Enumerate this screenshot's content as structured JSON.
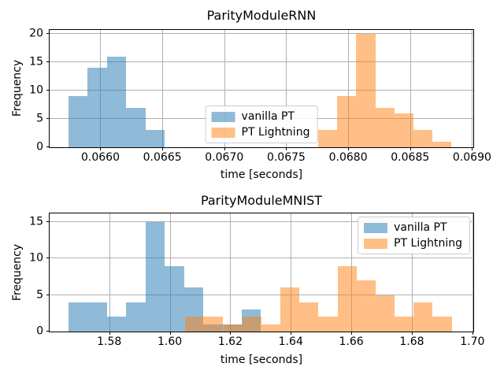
{
  "figure": {
    "background": "#ffffff",
    "grid_color": "#b0b0b0",
    "text_color": "#000000"
  },
  "chart_data": [
    {
      "type": "histogram",
      "title": "ParityModuleRNN",
      "xlabel": "time [seconds]",
      "ylabel": "Frequency",
      "xlim": [
        0.06559,
        0.06901
      ],
      "ylim": [
        0,
        20.7
      ],
      "grid": true,
      "xticks": [
        {
          "v": 0.066,
          "label": "0.0660"
        },
        {
          "v": 0.0665,
          "label": "0.0665"
        },
        {
          "v": 0.067,
          "label": "0.0670"
        },
        {
          "v": 0.0675,
          "label": "0.0675"
        },
        {
          "v": 0.068,
          "label": "0.0680"
        },
        {
          "v": 0.0685,
          "label": "0.0685"
        },
        {
          "v": 0.069,
          "label": "0.0690"
        }
      ],
      "yticks": [
        {
          "v": 0,
          "label": "0"
        },
        {
          "v": 5,
          "label": "5"
        },
        {
          "v": 10,
          "label": "10"
        },
        {
          "v": 15,
          "label": "15"
        },
        {
          "v": 20,
          "label": "20"
        }
      ],
      "legend": {
        "position": "lower-center"
      },
      "series": [
        {
          "name": "vanilla PT",
          "color": "#1f77b4",
          "alpha": 0.5,
          "bin_start": 0.06574,
          "bin_width": 0.000156,
          "counts": [
            9,
            14,
            16,
            7,
            3
          ]
        },
        {
          "name": "PT Lightning",
          "color": "#ff7f0e",
          "alpha": 0.5,
          "bin_start": 0.06776,
          "bin_width": 0.000153,
          "counts": [
            3,
            9,
            20,
            7,
            6,
            3,
            1
          ]
        }
      ]
    },
    {
      "type": "histogram",
      "title": "ParityModuleMNIST",
      "xlabel": "time [seconds]",
      "ylabel": "Frequency",
      "xlim": [
        1.5603,
        1.7003
      ],
      "ylim": [
        0,
        16.2
      ],
      "grid": true,
      "xticks": [
        {
          "v": 1.58,
          "label": "1.58"
        },
        {
          "v": 1.6,
          "label": "1.60"
        },
        {
          "v": 1.62,
          "label": "1.62"
        },
        {
          "v": 1.64,
          "label": "1.64"
        },
        {
          "v": 1.66,
          "label": "1.66"
        },
        {
          "v": 1.68,
          "label": "1.68"
        },
        {
          "v": 1.7,
          "label": "1.70"
        }
      ],
      "yticks": [
        {
          "v": 0,
          "label": "0"
        },
        {
          "v": 5,
          "label": "5"
        },
        {
          "v": 10,
          "label": "10"
        },
        {
          "v": 15,
          "label": "15"
        }
      ],
      "legend": {
        "position": "upper-right"
      },
      "series": [
        {
          "name": "vanilla PT",
          "color": "#1f77b4",
          "alpha": 0.5,
          "bin_start": 1.56655,
          "bin_width": 0.00636,
          "counts": [
            4,
            4,
            2,
            4,
            15,
            9,
            6,
            1,
            1,
            3
          ]
        },
        {
          "name": "PT Lightning",
          "color": "#ff7f0e",
          "alpha": 0.5,
          "bin_start": 1.6051,
          "bin_width": 0.00629,
          "counts": [
            2,
            2,
            1,
            2,
            1,
            6,
            4,
            2,
            9,
            7,
            5,
            2,
            4,
            2
          ]
        }
      ]
    }
  ]
}
